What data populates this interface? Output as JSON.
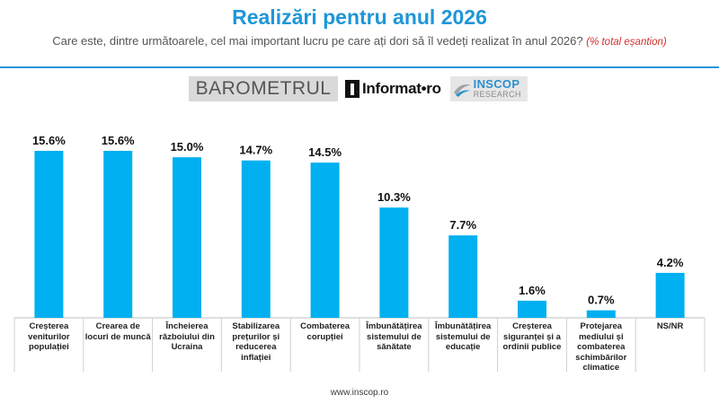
{
  "title": "Realizări pentru anul 2026",
  "subtitle": "Care este, dintre următoarele, cel mai important lucru pe care ați dori să îl vedeți realizat în anul 2026?",
  "subtitle_note": "(% total eșantion)",
  "logos": {
    "barometrul": "BAROMETRUL",
    "informat": "Informat•ro",
    "inscop_name": "INSCOP",
    "inscop_sub": "RESEARCH"
  },
  "footer": "www.inscop.ro",
  "colors": {
    "bar": "#00b0f0",
    "title": "#1e96d8",
    "note": "#d0312d"
  },
  "chart_data": {
    "type": "bar",
    "categories": [
      "Creșterea veniturilor populației",
      "Crearea de locuri de muncă",
      "Încheierea războiului din Ucraina",
      "Stabilizarea prețurilor și reducerea inflației",
      "Combaterea corupției",
      "Îmbunătățirea sistemului de sănătate",
      "Îmbunătățirea sistemului de educație",
      "Creșterea siguranței și a ordinii publice",
      "Protejarea mediului și combaterea schimbărilor climatice",
      "NS/NR"
    ],
    "values": [
      15.6,
      15.6,
      15.0,
      14.7,
      14.5,
      10.3,
      7.7,
      1.6,
      0.7,
      4.2
    ],
    "value_labels": [
      "15.6%",
      "15.6%",
      "15.0%",
      "14.7%",
      "14.5%",
      "10.3%",
      "7.7%",
      "1.6%",
      "0.7%",
      "4.2%"
    ],
    "ylim": [
      0,
      16
    ],
    "grid": false,
    "legend": "none"
  }
}
